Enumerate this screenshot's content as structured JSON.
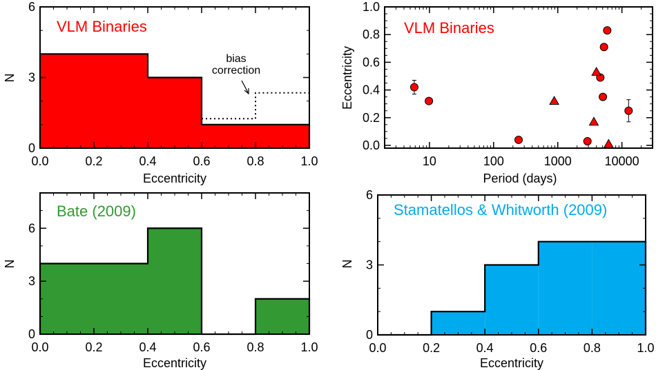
{
  "chart_data": [
    {
      "type": "bar",
      "chart_type": "histogram",
      "title": "VLM Binaries",
      "title_color": "#ff0000",
      "fill_color": "#ff0000",
      "xlabel": "Eccentricity",
      "ylabel": "N",
      "xlim": [
        0,
        1
      ],
      "ylim": [
        0,
        6
      ],
      "xticks": [
        "0.0",
        "0.2",
        "0.4",
        "0.6",
        "0.8",
        "1.0"
      ],
      "yticks": [
        "0",
        "3",
        "6"
      ],
      "bin_edges": [
        0.0,
        0.2,
        0.4,
        0.6,
        0.8,
        1.0
      ],
      "values": [
        4,
        4,
        3,
        1,
        1
      ],
      "bias_correction": {
        "label_line1": "bias",
        "label_line2": "correction",
        "style": "dotted",
        "segments": [
          {
            "x0": 0.6,
            "x1": 0.8,
            "y": 1.25
          },
          {
            "x0": 0.8,
            "x1": 1.0,
            "y": 2.35
          }
        ]
      }
    },
    {
      "type": "scatter",
      "title": "VLM Binaries",
      "title_color": "#ff0000",
      "marker_color": "#ff0000",
      "xlabel": "Period (days)",
      "ylabel": "Eccentricity",
      "xscale": "log",
      "xlim": [
        2,
        30000
      ],
      "ylim": [
        -0.02,
        1.0
      ],
      "xticks": [
        {
          "v": 10,
          "label": "10"
        },
        {
          "v": 100,
          "label": "100"
        },
        {
          "v": 1000,
          "label": "1000"
        },
        {
          "v": 10000,
          "label": "10000"
        }
      ],
      "yticks": [
        "0.0",
        "0.2",
        "0.4",
        "0.6",
        "0.8",
        "1.0"
      ],
      "circles": [
        {
          "x": 5.8,
          "y": 0.42,
          "err": 0.05
        },
        {
          "x": 9.8,
          "y": 0.32
        },
        {
          "x": 245,
          "y": 0.04
        },
        {
          "x": 2900,
          "y": 0.03
        },
        {
          "x": 4600,
          "y": 0.49
        },
        {
          "x": 5050,
          "y": 0.35
        },
        {
          "x": 5250,
          "y": 0.71
        },
        {
          "x": 5900,
          "y": 0.83
        },
        {
          "x": 12700,
          "y": 0.25,
          "err": 0.08
        }
      ],
      "triangles": [
        {
          "x": 880,
          "y": 0.32
        },
        {
          "x": 3650,
          "y": 0.17
        },
        {
          "x": 4000,
          "y": 0.53
        },
        {
          "x": 6200,
          "y": 0.01
        }
      ]
    },
    {
      "type": "bar",
      "chart_type": "histogram",
      "title": "Bate (2009)",
      "title_color": "#339933",
      "fill_color": "#339933",
      "xlabel": "Eccentricity",
      "ylabel": "N",
      "xlim": [
        0,
        1
      ],
      "ylim": [
        0,
        8
      ],
      "xticks": [
        "0.0",
        "0.2",
        "0.4",
        "0.6",
        "0.8",
        "1.0"
      ],
      "yticks": [
        "0",
        "3",
        "6"
      ],
      "ytick_values": [
        0,
        3,
        6
      ],
      "bin_edges": [
        0.0,
        0.2,
        0.4,
        0.6,
        0.8,
        1.0
      ],
      "values": [
        4,
        4,
        6,
        0,
        2
      ]
    },
    {
      "type": "bar",
      "chart_type": "histogram",
      "title": "Stamatellos & Whitworth (2009)",
      "title_color": "#00aaee",
      "fill_color": "#00aaee",
      "xlabel": "Eccentricity",
      "ylabel": "N",
      "xlim": [
        0,
        1
      ],
      "ylim": [
        0,
        6
      ],
      "xticks": [
        "0.0",
        "0.2",
        "0.4",
        "0.6",
        "0.8",
        "1.0"
      ],
      "yticks": [
        "0",
        "3",
        "6"
      ],
      "bin_edges": [
        0.0,
        0.2,
        0.4,
        0.6,
        0.8,
        1.0
      ],
      "values": [
        0,
        1,
        3,
        4,
        4
      ]
    }
  ]
}
